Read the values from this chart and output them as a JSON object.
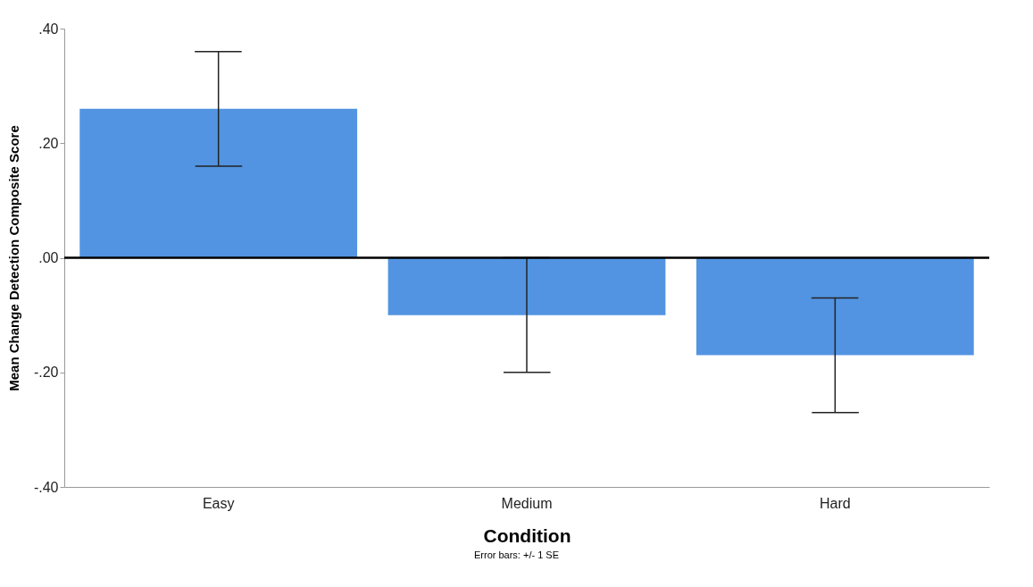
{
  "chart_data": {
    "type": "bar",
    "xlabel": "Condition",
    "ylabel": "Mean Change Detection Composite Score",
    "categories": [
      "Easy",
      "Medium",
      "Hard"
    ],
    "values": [
      0.26,
      -0.1,
      -0.17
    ],
    "errors": [
      0.1,
      0.1,
      0.1
    ],
    "color": "#5294e2",
    "ylim": [
      -0.4,
      0.4
    ],
    "yticks": [
      {
        "value": -0.4,
        "label": "-.40"
      },
      {
        "value": -0.2,
        "label": "-.20"
      },
      {
        "value": 0,
        "label": ".00"
      },
      {
        "value": 0.2,
        "label": ".20"
      },
      {
        "value": 0.4,
        "label": ".40"
      }
    ],
    "ref_lines": [
      {
        "axis": "y",
        "value": 0,
        "color": "#000000"
      }
    ],
    "annotations": [
      "Error bars: +/- 1 SE"
    ]
  }
}
